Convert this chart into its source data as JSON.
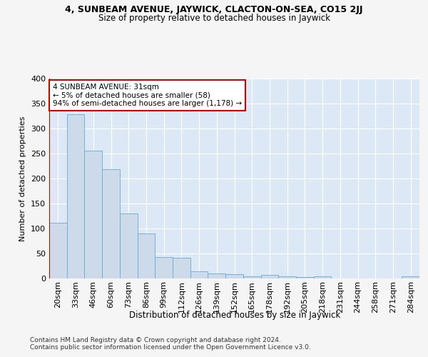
{
  "title1": "4, SUNBEAM AVENUE, JAYWICK, CLACTON-ON-SEA, CO15 2JJ",
  "title2": "Size of property relative to detached houses in Jaywick",
  "xlabel": "Distribution of detached houses by size in Jaywick",
  "ylabel": "Number of detached properties",
  "categories": [
    "20sqm",
    "33sqm",
    "46sqm",
    "60sqm",
    "73sqm",
    "86sqm",
    "99sqm",
    "112sqm",
    "126sqm",
    "139sqm",
    "152sqm",
    "165sqm",
    "178sqm",
    "192sqm",
    "205sqm",
    "218sqm",
    "231sqm",
    "244sqm",
    "258sqm",
    "271sqm",
    "284sqm"
  ],
  "values": [
    111,
    329,
    256,
    218,
    130,
    90,
    43,
    41,
    15,
    10,
    8,
    5,
    7,
    4,
    3,
    4,
    0,
    0,
    0,
    0,
    5
  ],
  "bar_color": "#ccdaea",
  "bar_edge_color": "#6aaad4",
  "vline_x": -0.5,
  "vline_color": "#cc0000",
  "annotation_text": "4 SUNBEAM AVENUE: 31sqm\n← 5% of detached houses are smaller (58)\n94% of semi-detached houses are larger (1,178) →",
  "annotation_box_facecolor": "#ffffff",
  "annotation_box_edgecolor": "#cc0000",
  "plot_bg_color": "#dce8f5",
  "grid_color": "#ffffff",
  "footer1": "Contains HM Land Registry data © Crown copyright and database right 2024.",
  "footer2": "Contains public sector information licensed under the Open Government Licence v3.0.",
  "ylim": [
    0,
    400
  ],
  "yticks": [
    0,
    50,
    100,
    150,
    200,
    250,
    300,
    350,
    400
  ],
  "fig_bg": "#f5f5f5"
}
